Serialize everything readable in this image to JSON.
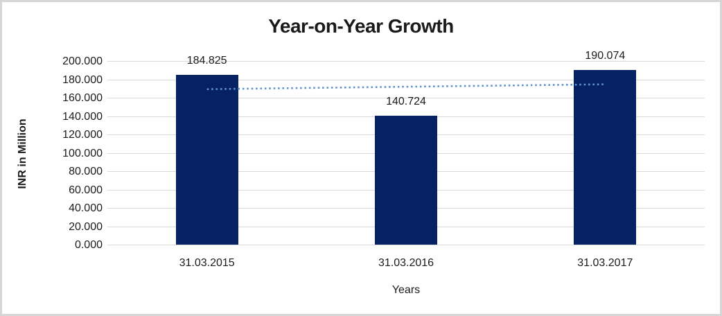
{
  "chart_data": {
    "type": "bar",
    "title": "Year-on-Year Growth",
    "xlabel": "Years",
    "ylabel": "INR in Million",
    "categories": [
      "31.03.2015",
      "31.03.2016",
      "31.03.2017"
    ],
    "values": [
      184.825,
      140.724,
      190.074
    ],
    "value_labels": [
      "184.825",
      "140.724",
      "190.074"
    ],
    "ylim": [
      0,
      200
    ],
    "ytick_step": 20,
    "ytick_labels": [
      "0.000",
      "20.000",
      "40.000",
      "60.000",
      "80.000",
      "100.000",
      "120.000",
      "140.000",
      "160.000",
      "180.000",
      "200.000"
    ],
    "grid": "horizontal",
    "legend": "none",
    "bar_color": "#072263",
    "gridline_color": "#d9d9d9",
    "trendline": {
      "type": "linear",
      "style": "dotted",
      "color": "#5e93d1",
      "start_value": 169.3,
      "end_value": 174.6
    }
  }
}
